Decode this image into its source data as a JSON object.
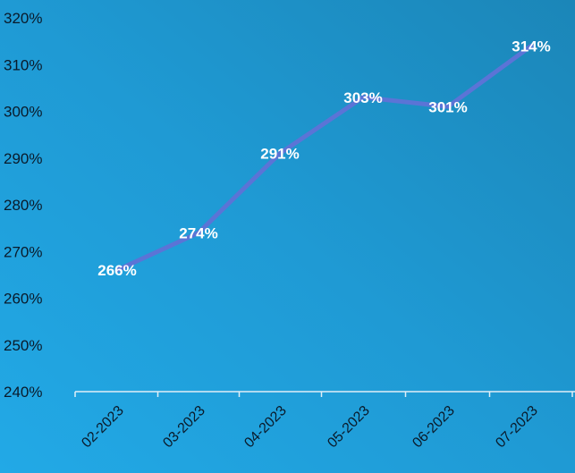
{
  "chart_data": {
    "type": "line",
    "title": "",
    "xlabel": "",
    "ylabel": "",
    "categories": [
      "02-2023",
      "03-2023",
      "04-2023",
      "05-2023",
      "06-2023",
      "07-2023"
    ],
    "series": [
      {
        "values": [
          266,
          274,
          291,
          303,
          301,
          314
        ]
      }
    ],
    "data_labels": [
      "266%",
      "274%",
      "291%",
      "303%",
      "301%",
      "314%"
    ],
    "y_ticks": [
      240,
      250,
      260,
      270,
      280,
      290,
      300,
      310,
      320
    ],
    "y_tick_labels": [
      "240%",
      "250%",
      "260%",
      "270%",
      "280%",
      "290%",
      "300%",
      "310%",
      "320%"
    ],
    "ylim": [
      240,
      320
    ],
    "grid": false,
    "legend": "none",
    "colors": {
      "line": "#5b74d6",
      "background": "#1f9ad4",
      "axis": "#e0eef7",
      "label": "#ffffff",
      "tick": "#0a1a2a"
    }
  }
}
